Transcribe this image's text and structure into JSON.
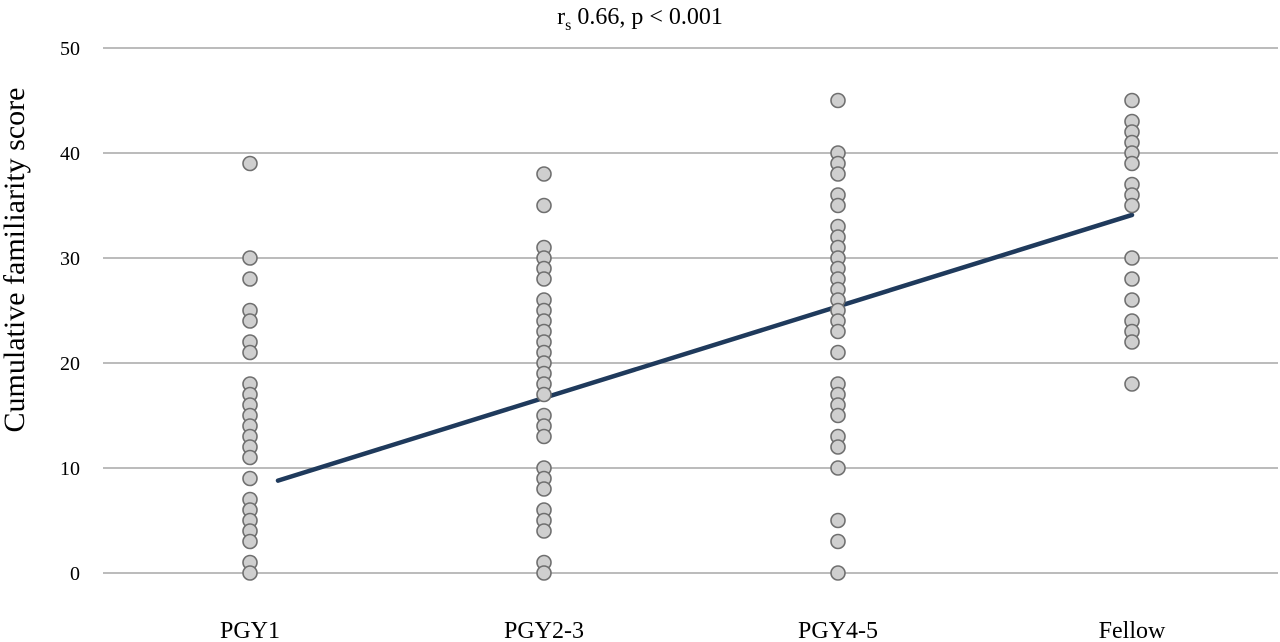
{
  "chart_data": {
    "type": "scatter",
    "title_parts": {
      "r": "r",
      "sub": "s",
      "rest": " 0.66, p < 0.001"
    },
    "ylabel": "Cumulative familiarity score",
    "xlabel": "",
    "categories": [
      "PGY1",
      "PGY2-3",
      "PGY4-5",
      "Fellow"
    ],
    "ylim": [
      0,
      50
    ],
    "yticks": [
      0,
      10,
      20,
      30,
      40,
      50
    ],
    "grid": true,
    "legend": "none",
    "colors": {
      "point_fill": "#cfcfcf",
      "point_stroke": "#6f6f6f",
      "trendline": "#1f3a5c",
      "grid": "#a6a6a6"
    },
    "points": [
      [
        39,
        30,
        28,
        25,
        24,
        22,
        21,
        18,
        17,
        16,
        15,
        14,
        13,
        12,
        11,
        9,
        7,
        6,
        5,
        4,
        3,
        1,
        0
      ],
      [
        38,
        35,
        31,
        30,
        29,
        28,
        26,
        25,
        24,
        23,
        22,
        21,
        20,
        19,
        18,
        17,
        15,
        14,
        13,
        10,
        9,
        8,
        6,
        5,
        4,
        1,
        0
      ],
      [
        45,
        40,
        39,
        38,
        36,
        35,
        33,
        32,
        31,
        30,
        29,
        28,
        27,
        26,
        25,
        24,
        23,
        21,
        18,
        17,
        16,
        15,
        13,
        12,
        10,
        5,
        3,
        0
      ],
      [
        45,
        43,
        42,
        41,
        40,
        39,
        37,
        36,
        35,
        30,
        28,
        26,
        24,
        23,
        22,
        18
      ]
    ],
    "trendline": {
      "start": {
        "category": "PGY1",
        "y": 8.8
      },
      "end": {
        "category": "Fellow",
        "y": 34.1
      }
    }
  }
}
